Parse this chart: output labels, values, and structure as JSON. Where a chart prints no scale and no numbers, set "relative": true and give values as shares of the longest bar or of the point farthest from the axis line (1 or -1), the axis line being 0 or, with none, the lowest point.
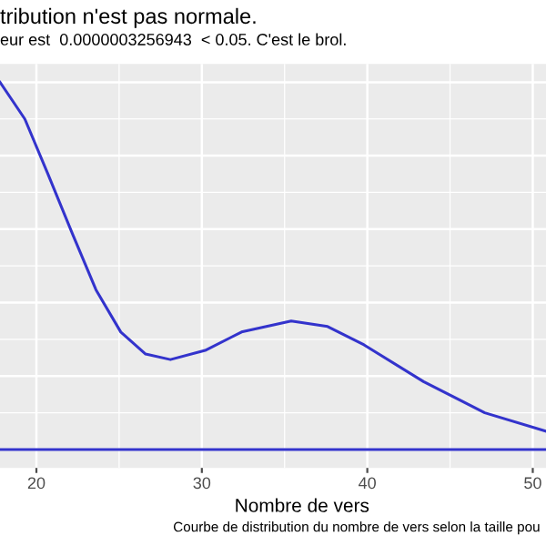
{
  "chart_data": {
    "type": "line",
    "ref_lines": [
      {
        "axis": "y",
        "value": 0,
        "color": "#3333cc"
      }
    ],
    "title": "tribution n'est pas normale.",
    "subtitle": "eur est  0.0000003256943  < 0.05. C'est le brol.",
    "xlabel": "Nombre de vers",
    "annotations": [
      "Courbe de distribution du nombre de vers selon la taille pou"
    ],
    "relative": true,
    "xlim": [
      17.8,
      50.8
    ],
    "xticks": [
      20,
      30,
      40,
      50
    ],
    "grid": true,
    "series": [
      {
        "color": "#3333cc",
        "x": [
          17.8,
          19.3,
          20.7,
          22.2,
          23.6,
          25.1,
          26.6,
          28.1,
          30.2,
          32.4,
          35.4,
          37.6,
          39.8,
          43.4,
          47.1,
          50.8
        ],
        "values": [
          1.0,
          0.9,
          0.75,
          0.585,
          0.435,
          0.32,
          0.26,
          0.245,
          0.27,
          0.32,
          0.35,
          0.335,
          0.285,
          0.185,
          0.1,
          0.05
        ]
      }
    ]
  }
}
